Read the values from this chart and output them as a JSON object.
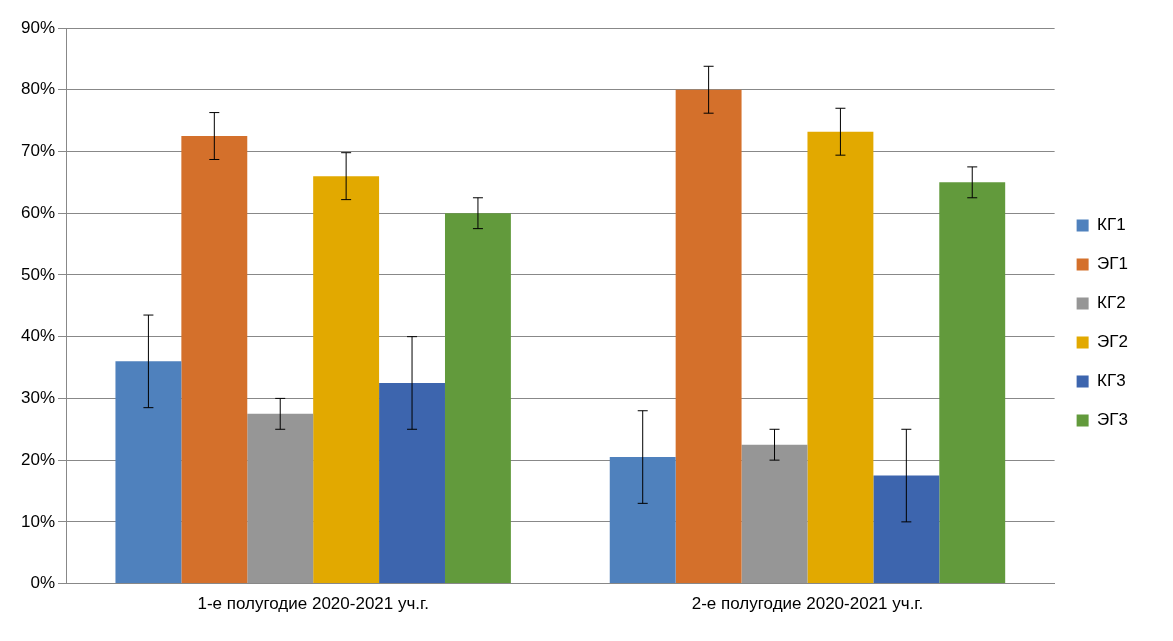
{
  "chart_data": {
    "type": "bar",
    "categories": [
      "1-е полугодие 2020-2021 уч.г.",
      "2-е полугодие 2020-2021 уч.г."
    ],
    "series": [
      {
        "name": "КГ1",
        "color": "#4f81bd",
        "values": [
          36,
          20.5
        ],
        "errors": [
          7.5,
          7.5
        ]
      },
      {
        "name": "ЭГ1",
        "color": "#d4702b",
        "values": [
          72.5,
          80
        ],
        "errors": [
          3.8,
          3.8
        ]
      },
      {
        "name": "КГ2",
        "color": "#969696",
        "values": [
          27.5,
          22.5
        ],
        "errors": [
          2.5,
          2.5
        ]
      },
      {
        "name": "ЭГ2",
        "color": "#e2a900",
        "values": [
          66,
          73.2
        ],
        "errors": [
          3.8,
          3.8
        ]
      },
      {
        "name": "КГ3",
        "color": "#3d65ae",
        "values": [
          32.5,
          17.5
        ],
        "errors": [
          7.5,
          7.5
        ]
      },
      {
        "name": "ЭГ3",
        "color": "#629a3c",
        "values": [
          60,
          65
        ],
        "errors": [
          2.5,
          2.5
        ]
      }
    ],
    "ylim": [
      0,
      90
    ],
    "yticks": [
      {
        "value": 0,
        "label": "0%"
      },
      {
        "value": 10,
        "label": "10%"
      },
      {
        "value": 20,
        "label": "20%"
      },
      {
        "value": 30,
        "label": "30%"
      },
      {
        "value": 40,
        "label": "40%"
      },
      {
        "value": 50,
        "label": "50%"
      },
      {
        "value": 60,
        "label": "60%"
      },
      {
        "value": 70,
        "label": "70%"
      },
      {
        "value": 80,
        "label": "80%"
      },
      {
        "value": 90,
        "label": "90%"
      }
    ],
    "grid": "y",
    "legend": "right"
  }
}
